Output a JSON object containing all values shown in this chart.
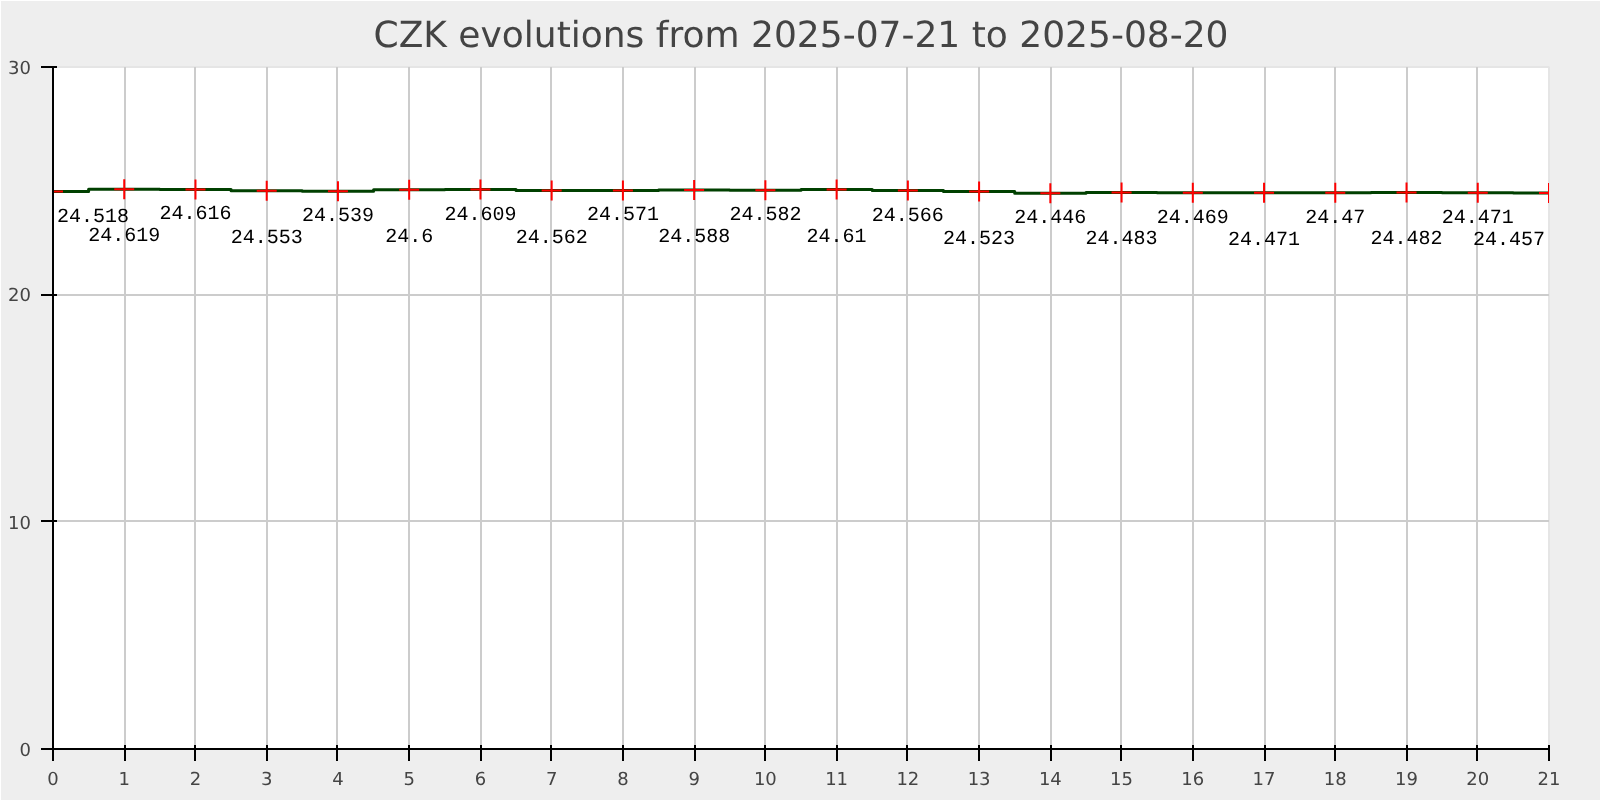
{
  "chart_data": {
    "type": "step",
    "title": "CZK evolutions from 2025-07-21 to 2025-08-20",
    "x": [
      0,
      1,
      2,
      3,
      4,
      5,
      6,
      7,
      8,
      9,
      10,
      11,
      12,
      13,
      14,
      15,
      16,
      17,
      18,
      19,
      20,
      21
    ],
    "series": [
      {
        "color": "#004000",
        "colors": [
          "#ff0000",
          "#ff0000",
          "#ff0000",
          "#ff0000",
          "#ff0000",
          "#ff0000",
          "#ff0000",
          "#ff0000",
          "#ff0000",
          "#ff0000",
          "#ff0000",
          "#ff0000",
          "#ff0000",
          "#ff0000",
          "#ff0000",
          "#ff0000",
          "#ff0000",
          "#ff0000",
          "#ff0000",
          "#ff0000",
          "#ff0000",
          "#ff0000"
        ],
        "values": [
          24.518,
          24.619,
          24.616,
          24.553,
          24.539,
          24.6,
          24.609,
          24.562,
          24.571,
          24.588,
          24.582,
          24.61,
          24.566,
          24.523,
          24.446,
          24.483,
          24.469,
          24.471,
          24.47,
          24.482,
          24.471,
          24.457
        ]
      }
    ],
    "xlim": [
      0,
      21
    ],
    "xticks": [
      0,
      1,
      2,
      3,
      4,
      5,
      6,
      7,
      8,
      9,
      10,
      11,
      12,
      13,
      14,
      15,
      16,
      17,
      18,
      19,
      20,
      21
    ],
    "ylim": [
      0,
      30
    ],
    "yticks": [
      0,
      10,
      20,
      30
    ],
    "grid": true,
    "marker": "cross",
    "data_labels": true
  }
}
